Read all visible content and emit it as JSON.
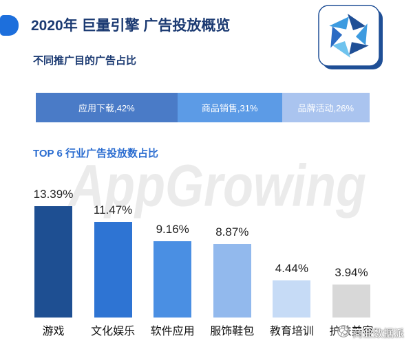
{
  "header": {
    "title": "2020年 巨量引擎 广告投放概览"
  },
  "brand": {
    "logo_icon": "aperture-logo-icon",
    "watermark": "AppGrowing"
  },
  "chart_data": [
    {
      "type": "bar",
      "orientation": "horizontal",
      "stacked": true,
      "title": "不同推广目的广告占比",
      "labels": [
        "应用下载,42%",
        "商品销售,31%",
        "品牌活动,26%"
      ],
      "values": [
        42,
        31,
        26
      ],
      "colors": [
        "#4a7bc7",
        "#5c9be6",
        "#aac4ef"
      ]
    },
    {
      "type": "bar",
      "title": "TOP 6 行业广告投放数占比",
      "categories": [
        "游戏",
        "文化娱乐",
        "软件应用",
        "服饰鞋包",
        "教育培训",
        "护肤美容"
      ],
      "values": [
        13.39,
        11.47,
        9.16,
        8.87,
        4.44,
        3.94
      ],
      "value_labels": [
        "13.39%",
        "11.47%",
        "9.16%",
        "8.87%",
        "4.44%",
        "3.94%"
      ],
      "colors": [
        "#1e4f92",
        "#2e74d3",
        "#4a8fe3",
        "#92b9ed",
        "#c6dbf6",
        "#d8d8d8"
      ]
    }
  ],
  "footer": {
    "wechat_icon": "wechat-icon",
    "account_name": "商业数据派"
  },
  "colors": {
    "title": "#1b3a72",
    "section_accent": "#2a6cd0",
    "marker": "#1d6fdc",
    "watermark": "#ebebeb"
  }
}
